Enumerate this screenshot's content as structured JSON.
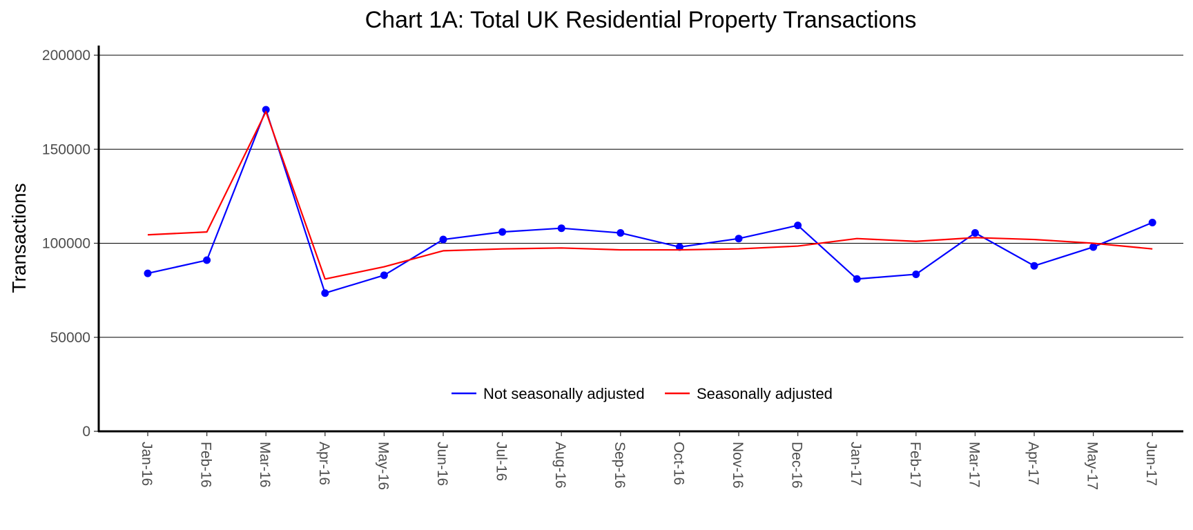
{
  "chart_data": {
    "type": "line",
    "title": "Chart 1A: Total UK Residential Property Transactions",
    "xlabel": "",
    "ylabel": "Transactions",
    "ylim": [
      0,
      200000
    ],
    "yticks": [
      0,
      50000,
      100000,
      150000,
      200000
    ],
    "grid": "horizontal",
    "legend_position": "bottom-center",
    "categories": [
      "Jan-16",
      "Feb-16",
      "Mar-16",
      "Apr-16",
      "May-16",
      "Jun-16",
      "Jul-16",
      "Aug-16",
      "Sep-16",
      "Oct-16",
      "Nov-16",
      "Dec-16",
      "Jan-17",
      "Feb-17",
      "Mar-17",
      "Apr-17",
      "May-17",
      "Jun-17"
    ],
    "series": [
      {
        "name": "Not seasonally adjusted",
        "color": "#0000ff",
        "markers": true,
        "values": [
          84000,
          91000,
          171000,
          73500,
          83000,
          102000,
          106000,
          108000,
          105500,
          98000,
          102500,
          109500,
          81000,
          83500,
          105500,
          88000,
          98000,
          111000
        ]
      },
      {
        "name": "Seasonally adjusted",
        "color": "#ff0000",
        "markers": false,
        "values": [
          104500,
          106000,
          170000,
          81000,
          87500,
          96000,
          97000,
          97500,
          96500,
          96500,
          97000,
          98500,
          102500,
          101000,
          103000,
          102000,
          100000,
          97000
        ]
      }
    ]
  }
}
